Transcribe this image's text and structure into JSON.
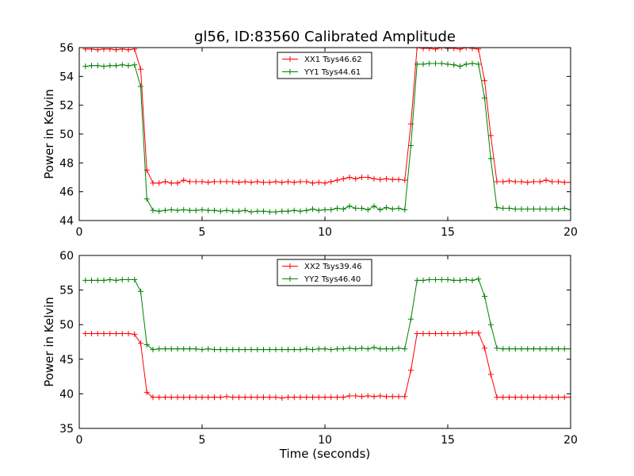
{
  "title": "gl56, ID:83560 Calibrated Amplitude",
  "xlabel": "Time (seconds)",
  "chart_data": [
    {
      "type": "line",
      "ylabel": "Power in Kelvin",
      "xlim": [
        0,
        20
      ],
      "ylim": [
        44,
        56
      ],
      "xticks": [
        0,
        5,
        10,
        15,
        20
      ],
      "yticks": [
        44,
        46,
        48,
        50,
        52,
        54,
        56
      ],
      "grid": false,
      "legend_position": "top-center",
      "series": [
        {
          "name": "XX1 Tsys46.62",
          "color": "#ff0000",
          "x": [
            0.25,
            0.5,
            0.75,
            1.0,
            1.25,
            1.5,
            1.75,
            2.0,
            2.25,
            2.5,
            2.75,
            3.0,
            3.25,
            3.5,
            3.75,
            4.0,
            4.25,
            4.5,
            4.75,
            5.0,
            5.25,
            5.5,
            5.75,
            6.0,
            6.25,
            6.5,
            6.75,
            7.0,
            7.25,
            7.5,
            7.75,
            8.0,
            8.25,
            8.5,
            8.75,
            9.0,
            9.25,
            9.5,
            9.75,
            10.0,
            10.25,
            10.5,
            10.75,
            11.0,
            11.25,
            11.5,
            11.75,
            12.0,
            12.25,
            12.5,
            12.75,
            13.0,
            13.25,
            13.5,
            13.75,
            14.0,
            14.25,
            14.5,
            14.75,
            15.0,
            15.25,
            15.5,
            15.75,
            16.0,
            16.25,
            16.5,
            16.75,
            17.0,
            17.25,
            17.5,
            17.75,
            18.0,
            18.25,
            18.5,
            18.75,
            19.0,
            19.25,
            19.5,
            19.75,
            20.0
          ],
          "y": [
            55.9,
            55.9,
            55.85,
            55.9,
            55.9,
            55.85,
            55.9,
            55.85,
            55.9,
            54.5,
            47.5,
            46.6,
            46.6,
            46.7,
            46.6,
            46.6,
            46.8,
            46.7,
            46.7,
            46.7,
            46.65,
            46.7,
            46.7,
            46.7,
            46.7,
            46.65,
            46.7,
            46.65,
            46.7,
            46.65,
            46.65,
            46.7,
            46.65,
            46.7,
            46.65,
            46.7,
            46.7,
            46.6,
            46.65,
            46.6,
            46.7,
            46.8,
            46.9,
            47.0,
            46.9,
            47.0,
            47.0,
            46.9,
            46.85,
            46.9,
            46.85,
            46.85,
            46.8,
            50.7,
            56.0,
            55.95,
            55.95,
            55.9,
            56.0,
            55.95,
            55.95,
            55.9,
            56.0,
            55.95,
            55.9,
            53.7,
            49.9,
            46.7,
            46.7,
            46.75,
            46.7,
            46.7,
            46.65,
            46.7,
            46.7,
            46.8,
            46.7,
            46.7,
            46.65,
            46.65
          ]
        },
        {
          "name": "YY1 Tsys44.61",
          "color": "#008000",
          "x": [
            0.25,
            0.5,
            0.75,
            1.0,
            1.25,
            1.5,
            1.75,
            2.0,
            2.25,
            2.5,
            2.75,
            3.0,
            3.25,
            3.5,
            3.75,
            4.0,
            4.25,
            4.5,
            4.75,
            5.0,
            5.25,
            5.5,
            5.75,
            6.0,
            6.25,
            6.5,
            6.75,
            7.0,
            7.25,
            7.5,
            7.75,
            8.0,
            8.25,
            8.5,
            8.75,
            9.0,
            9.25,
            9.5,
            9.75,
            10.0,
            10.25,
            10.5,
            10.75,
            11.0,
            11.25,
            11.5,
            11.75,
            12.0,
            12.25,
            12.5,
            12.75,
            13.0,
            13.25,
            13.5,
            13.75,
            14.0,
            14.25,
            14.5,
            14.75,
            15.0,
            15.25,
            15.5,
            15.75,
            16.0,
            16.25,
            16.5,
            16.75,
            17.0,
            17.25,
            17.5,
            17.75,
            18.0,
            18.25,
            18.5,
            18.75,
            19.0,
            19.25,
            19.5,
            19.75,
            20.0
          ],
          "y": [
            54.7,
            54.75,
            54.75,
            54.7,
            54.75,
            54.75,
            54.8,
            54.75,
            54.8,
            53.3,
            45.5,
            44.7,
            44.65,
            44.7,
            44.75,
            44.7,
            44.75,
            44.7,
            44.7,
            44.75,
            44.7,
            44.7,
            44.65,
            44.7,
            44.65,
            44.65,
            44.7,
            44.6,
            44.65,
            44.65,
            44.6,
            44.6,
            44.65,
            44.65,
            44.7,
            44.65,
            44.7,
            44.8,
            44.7,
            44.75,
            44.75,
            44.85,
            44.8,
            45.0,
            44.85,
            44.85,
            44.75,
            45.0,
            44.75,
            44.9,
            44.8,
            44.85,
            44.75,
            49.2,
            54.85,
            54.85,
            54.9,
            54.9,
            54.9,
            54.85,
            54.8,
            54.7,
            54.85,
            54.9,
            54.85,
            52.5,
            48.3,
            44.9,
            44.85,
            44.85,
            44.8,
            44.8,
            44.8,
            44.8,
            44.8,
            44.8,
            44.8,
            44.8,
            44.85,
            44.75
          ]
        }
      ]
    },
    {
      "type": "line",
      "ylabel": "Power in Kelvin",
      "xlim": [
        0,
        20
      ],
      "ylim": [
        35,
        60
      ],
      "xticks": [
        0,
        5,
        10,
        15,
        20
      ],
      "yticks": [
        35,
        40,
        45,
        50,
        55,
        60
      ],
      "grid": false,
      "legend_position": "top-center",
      "series": [
        {
          "name": "XX2 Tsys39.46",
          "color": "#ff0000",
          "x": [
            0.25,
            0.5,
            0.75,
            1.0,
            1.25,
            1.5,
            1.75,
            2.0,
            2.25,
            2.5,
            2.75,
            3.0,
            3.25,
            3.5,
            3.75,
            4.0,
            4.25,
            4.5,
            4.75,
            5.0,
            5.25,
            5.5,
            5.75,
            6.0,
            6.25,
            6.5,
            6.75,
            7.0,
            7.25,
            7.5,
            7.75,
            8.0,
            8.25,
            8.5,
            8.75,
            9.0,
            9.25,
            9.5,
            9.75,
            10.0,
            10.25,
            10.5,
            10.75,
            11.0,
            11.25,
            11.5,
            11.75,
            12.0,
            12.25,
            12.5,
            12.75,
            13.0,
            13.25,
            13.5,
            13.75,
            14.0,
            14.25,
            14.5,
            14.75,
            15.0,
            15.25,
            15.5,
            15.75,
            16.0,
            16.25,
            16.5,
            16.75,
            17.0,
            17.25,
            17.5,
            17.75,
            18.0,
            18.25,
            18.5,
            18.75,
            19.0,
            19.25,
            19.5,
            19.75,
            20.0
          ],
          "y": [
            48.7,
            48.7,
            48.7,
            48.7,
            48.7,
            48.7,
            48.7,
            48.7,
            48.6,
            47.3,
            40.2,
            39.5,
            39.5,
            39.5,
            39.5,
            39.5,
            39.5,
            39.5,
            39.5,
            39.5,
            39.5,
            39.5,
            39.5,
            39.6,
            39.5,
            39.5,
            39.5,
            39.5,
            39.5,
            39.5,
            39.5,
            39.5,
            39.4,
            39.5,
            39.5,
            39.5,
            39.5,
            39.5,
            39.5,
            39.5,
            39.5,
            39.5,
            39.5,
            39.7,
            39.7,
            39.6,
            39.7,
            39.6,
            39.7,
            39.6,
            39.6,
            39.6,
            39.6,
            43.4,
            48.7,
            48.7,
            48.7,
            48.7,
            48.7,
            48.7,
            48.7,
            48.7,
            48.8,
            48.8,
            48.8,
            46.6,
            42.8,
            39.5,
            39.5,
            39.5,
            39.5,
            39.5,
            39.5,
            39.5,
            39.5,
            39.5,
            39.5,
            39.5,
            39.5,
            39.5
          ]
        },
        {
          "name": "YY2 Tsys46.40",
          "color": "#008000",
          "x": [
            0.25,
            0.5,
            0.75,
            1.0,
            1.25,
            1.5,
            1.75,
            2.0,
            2.25,
            2.5,
            2.75,
            3.0,
            3.25,
            3.5,
            3.75,
            4.0,
            4.25,
            4.5,
            4.75,
            5.0,
            5.25,
            5.5,
            5.75,
            6.0,
            6.25,
            6.5,
            6.75,
            7.0,
            7.25,
            7.5,
            7.75,
            8.0,
            8.25,
            8.5,
            8.75,
            9.0,
            9.25,
            9.5,
            9.75,
            10.0,
            10.25,
            10.5,
            10.75,
            11.0,
            11.25,
            11.5,
            11.75,
            12.0,
            12.25,
            12.5,
            12.75,
            13.0,
            13.25,
            13.5,
            13.75,
            14.0,
            14.25,
            14.5,
            14.75,
            15.0,
            15.25,
            15.5,
            15.75,
            16.0,
            16.25,
            16.5,
            16.75,
            17.0,
            17.25,
            17.5,
            17.75,
            18.0,
            18.25,
            18.5,
            18.75,
            19.0,
            19.25,
            19.5,
            19.75,
            20.0
          ],
          "y": [
            56.4,
            56.4,
            56.4,
            56.4,
            56.5,
            56.4,
            56.5,
            56.5,
            56.5,
            54.8,
            47.1,
            46.4,
            46.5,
            46.5,
            46.5,
            46.5,
            46.5,
            46.5,
            46.5,
            46.4,
            46.5,
            46.4,
            46.4,
            46.4,
            46.4,
            46.4,
            46.4,
            46.4,
            46.4,
            46.4,
            46.4,
            46.4,
            46.4,
            46.4,
            46.4,
            46.4,
            46.5,
            46.4,
            46.5,
            46.5,
            46.4,
            46.5,
            46.5,
            46.6,
            46.5,
            46.6,
            46.5,
            46.7,
            46.5,
            46.5,
            46.5,
            46.6,
            46.5,
            50.8,
            56.4,
            56.4,
            56.5,
            56.5,
            56.5,
            56.5,
            56.4,
            56.4,
            56.5,
            56.4,
            56.6,
            54.1,
            50.0,
            46.6,
            46.5,
            46.5,
            46.5,
            46.5,
            46.5,
            46.5,
            46.5,
            46.5,
            46.5,
            46.5,
            46.5,
            46.5
          ]
        }
      ]
    }
  ]
}
